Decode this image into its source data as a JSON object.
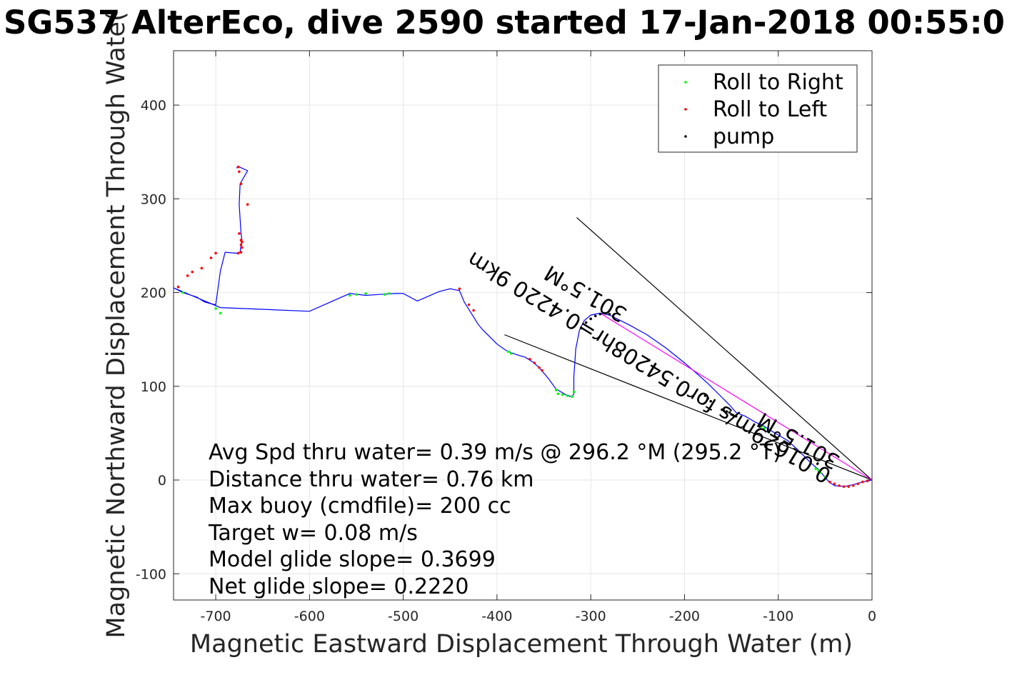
{
  "chart_data": {
    "type": "line",
    "title": "SG537 AlterEco, dive 2590 started 17-Jan-2018 00:55:0",
    "xlabel": "Magnetic Eastward Displacement Through Water (m)",
    "ylabel": "Magnetic Northward Displacement Through Wate(",
    "xlim": [
      -745,
      0
    ],
    "ylim": [
      -128,
      458
    ],
    "xticks": [
      -700,
      -600,
      -500,
      -400,
      -300,
      -200,
      -100,
      0
    ],
    "yticks": [
      -100,
      0,
      100,
      200,
      300,
      400
    ],
    "grid": true,
    "legend_position": "top-right",
    "legend": [
      {
        "label": "Roll to Right",
        "color": "#00ff00"
      },
      {
        "label": "Roll to Left",
        "color": "#ff0000"
      },
      {
        "label": "pump",
        "color": "#000000"
      }
    ],
    "colors": {
      "track": "#0000ff",
      "current": "#ff00ff",
      "lines": "#000000"
    },
    "track": {
      "x": [
        0,
        -10,
        -20,
        -30,
        -40,
        -46,
        -50,
        -58,
        -65,
        -70,
        -80,
        -90,
        -100,
        -110,
        -116,
        -125,
        -135,
        -145,
        -152,
        -160,
        -175,
        -185,
        -200,
        -220,
        -240,
        -260,
        -280,
        -290,
        -300,
        -307,
        -312,
        -316,
        -318,
        -318,
        -320,
        -325,
        -330,
        -337,
        -345,
        -355,
        -362,
        -370,
        -380,
        -390,
        -400,
        -408,
        -415,
        -420,
        -425,
        -430,
        -435,
        -440,
        -450,
        -462,
        -485,
        -500,
        -508,
        -525,
        -540,
        -557,
        -600,
        -695,
        -745,
        -735,
        -720,
        -712,
        -705,
        -700,
        -695,
        -690,
        -678,
        -674,
        -673,
        -672,
        -673,
        -675,
        -674,
        -666,
        -675,
        -678
      ],
      "y": [
        0,
        -2,
        -5,
        -7,
        -6,
        -2,
        3,
        12,
        18,
        23,
        33,
        42,
        48,
        54,
        58,
        62,
        68,
        72,
        80,
        88,
        103,
        112,
        125,
        141,
        155,
        166,
        176,
        178,
        176,
        170,
        160,
        140,
        110,
        92,
        89,
        90,
        93,
        97,
        108,
        120,
        126,
        131,
        134,
        138,
        145,
        153,
        160,
        166,
        174,
        182,
        190,
        202,
        204,
        201,
        191,
        199,
        199,
        198,
        197,
        199,
        180,
        184,
        205,
        200,
        195,
        190,
        188,
        187,
        223,
        243,
        242,
        243,
        251,
        256,
        263,
        294,
        316,
        330,
        334,
        333
      ]
    },
    "current_vector": {
      "x": [
        0,
        -290
      ],
      "y": [
        0,
        178
      ]
    },
    "annotation_lines": [
      {
        "x": [
          0,
          -315
        ],
        "y": [
          0,
          280
        ]
      },
      {
        "x": [
          0,
          -392
        ],
        "y": [
          0,
          155
        ]
      }
    ],
    "roll_right": {
      "x": [
        -50,
        -55,
        -57,
        -60,
        -110,
        -115,
        -118,
        -318,
        -320,
        -325,
        -330,
        -335,
        -337,
        -385,
        -388,
        -557,
        -550,
        -540,
        -520,
        -515,
        -735,
        -700,
        -695
      ],
      "y": [
        3,
        8,
        10,
        12,
        51,
        55,
        57,
        94,
        89,
        90,
        91,
        92,
        96,
        135,
        137,
        197,
        198,
        199,
        198,
        199,
        200,
        183,
        178
      ]
    },
    "roll_left": {
      "x": [
        -5,
        -10,
        -15,
        -20,
        -25,
        -30,
        -35,
        -40,
        -45,
        -365,
        -360,
        -355,
        -352,
        -440,
        -430,
        -425,
        -740,
        -730,
        -725,
        -715,
        -705,
        -700,
        -676,
        -673,
        -672,
        -673,
        -672,
        -673,
        -675,
        -673,
        -666,
        -675,
        -676
      ],
      "y": [
        -1,
        -2,
        -4,
        -6,
        -7,
        -7,
        -6,
        -4,
        -2,
        129,
        125,
        120,
        117,
        204,
        187,
        181,
        206,
        218,
        222,
        226,
        237,
        242,
        242,
        243,
        248,
        251,
        254,
        256,
        263,
        316,
        294,
        329,
        334
      ]
    },
    "pump": {
      "x": [
        -160,
        -158,
        -155,
        -152,
        -150,
        -148,
        -145,
        -310,
        -305,
        -300,
        -295,
        -290,
        -285,
        -280,
        -178,
        -175,
        -172
      ],
      "y": [
        75,
        74,
        73,
        72,
        70,
        69,
        68,
        162,
        168,
        172,
        175,
        177,
        178,
        177,
        90,
        87,
        84
      ]
    },
    "rotated_labels": {
      "vector_heading_upper": "301.5°M",
      "vector_heading_lower": "301.5°M",
      "current_summary": "0.01629m/s for0.54208hr=0.4220 9km"
    },
    "stats_text": [
      "Avg Spd thru water=  0.39 m/s @ 296.2 °M (295.2  °T)",
      "Distance thru water=  0.76 km",
      "Max buoy (cmdfile)= 200 cc",
      "Target w= 0.08 m/s",
      "Model glide slope= 0.3699",
      "Net glide slope= 0.2220"
    ]
  }
}
